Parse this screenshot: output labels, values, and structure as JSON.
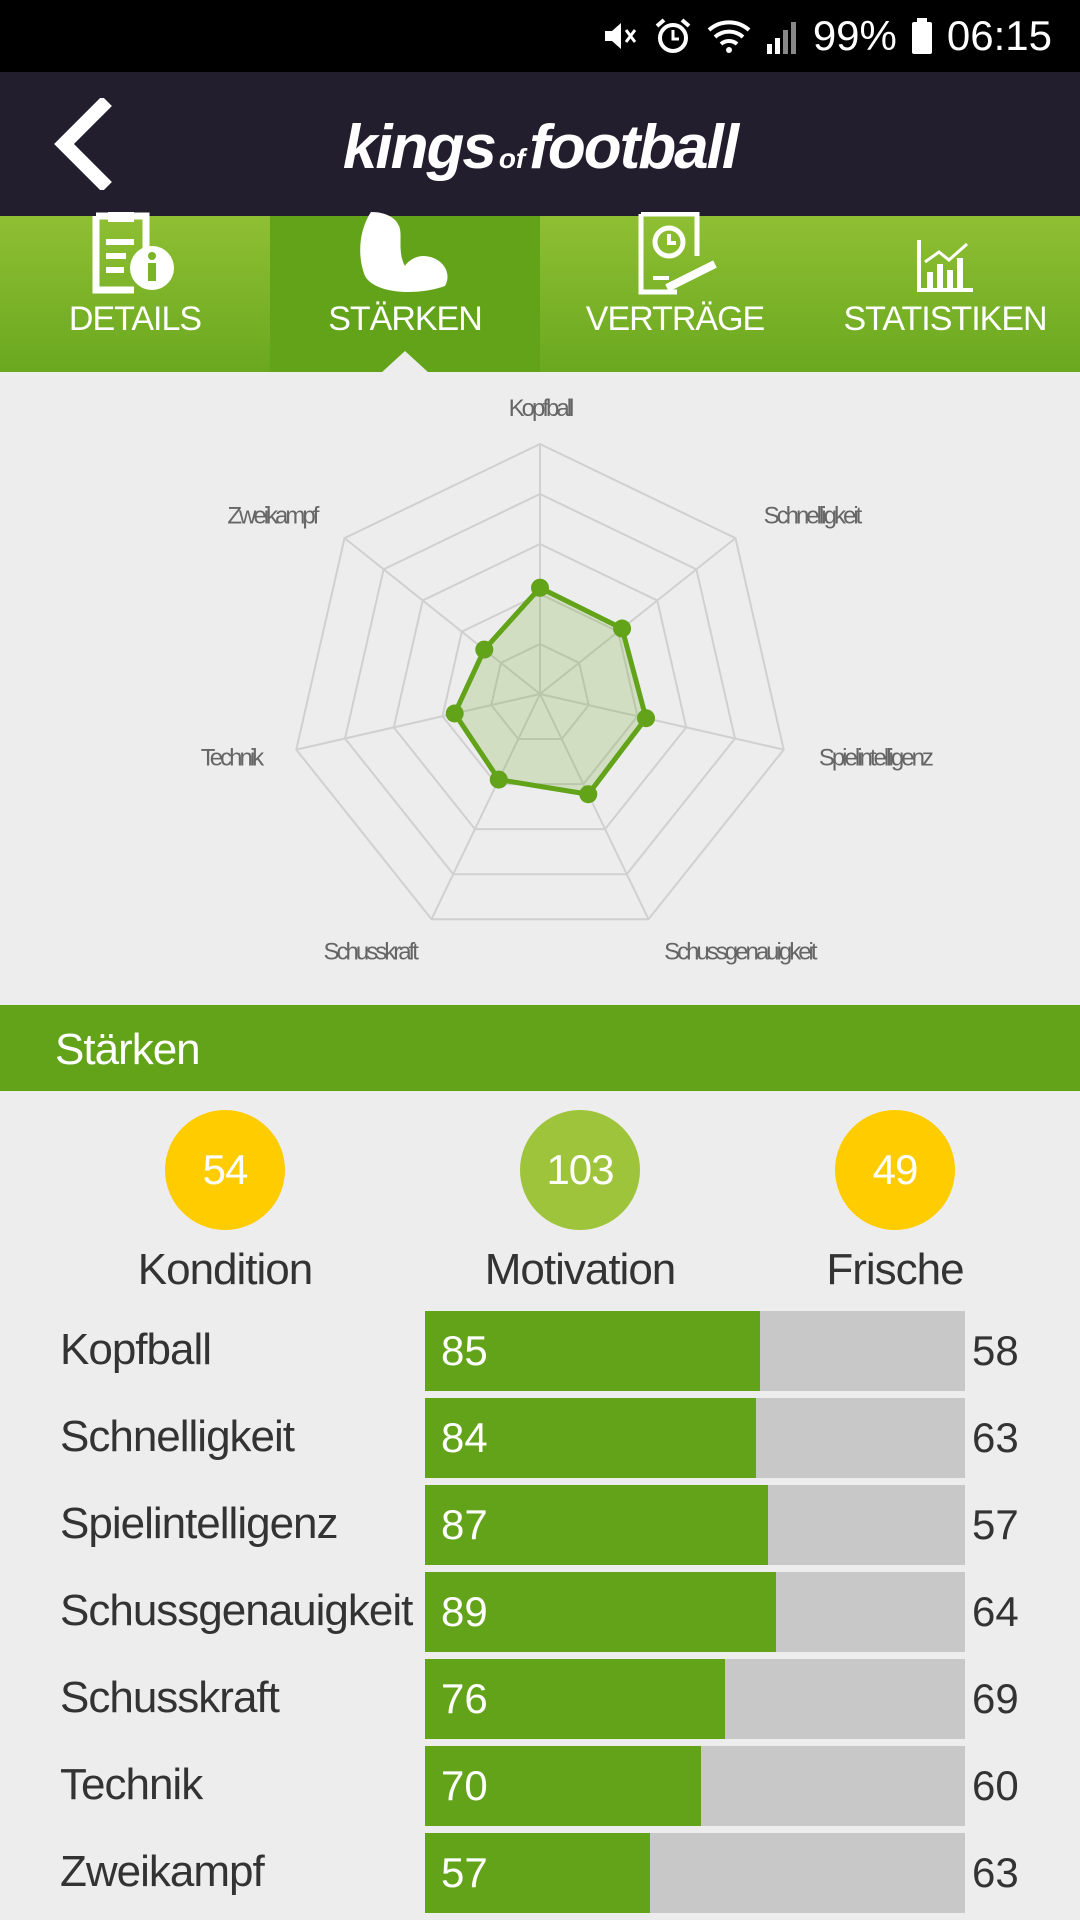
{
  "status_bar": {
    "battery": "99%",
    "time": "06:15",
    "icons": [
      "mute-icon",
      "alarm-icon",
      "wifi-icon",
      "signal-icon",
      "battery-icon"
    ]
  },
  "header": {
    "logo_main_1": "kings",
    "logo_of": "of",
    "logo_main_2": "football",
    "back_icon": "chevron-left-icon"
  },
  "tabs": [
    {
      "label": "DETAILS",
      "icon": "clipboard-info-icon",
      "active": false
    },
    {
      "label": "STÄRKEN",
      "icon": "biceps-icon",
      "active": true
    },
    {
      "label": "VERTRÄGE",
      "icon": "contract-icon",
      "active": false
    },
    {
      "label": "STATISTIKEN",
      "icon": "chart-icon",
      "active": false
    }
  ],
  "chart_data": {
    "type": "radar",
    "axes": [
      "Kopfball",
      "Schnelligkeit",
      "Spielintelligenz",
      "Schussgenauigkeit",
      "Schusskraft",
      "Technik",
      "Zweikampf"
    ],
    "values": [
      85,
      84,
      87,
      89,
      76,
      70,
      57
    ],
    "range": [
      0,
      200
    ],
    "rings": 5,
    "color": "#62a319"
  },
  "section": {
    "title": "Stärken"
  },
  "summary": [
    {
      "label": "Kondition",
      "value": "54",
      "color": "#ffcc00"
    },
    {
      "label": "Motivation",
      "value": "103",
      "color": "#9dc43a"
    },
    {
      "label": "Frische",
      "value": "49",
      "color": "#ffcc00"
    }
  ],
  "stats": {
    "max": 137,
    "rows": [
      {
        "name": "Kopfball",
        "value": 85,
        "right": "58"
      },
      {
        "name": "Schnelligkeit",
        "value": 84,
        "right": "63"
      },
      {
        "name": "Spielintelligenz",
        "value": 87,
        "right": "57"
      },
      {
        "name": "Schussgenauigkeit",
        "value": 89,
        "right": "64"
      },
      {
        "name": "Schusskraft",
        "value": 76,
        "right": "69"
      },
      {
        "name": "Technik",
        "value": 70,
        "right": "60"
      },
      {
        "name": "Zweikampf",
        "value": 57,
        "right": "63"
      }
    ]
  }
}
